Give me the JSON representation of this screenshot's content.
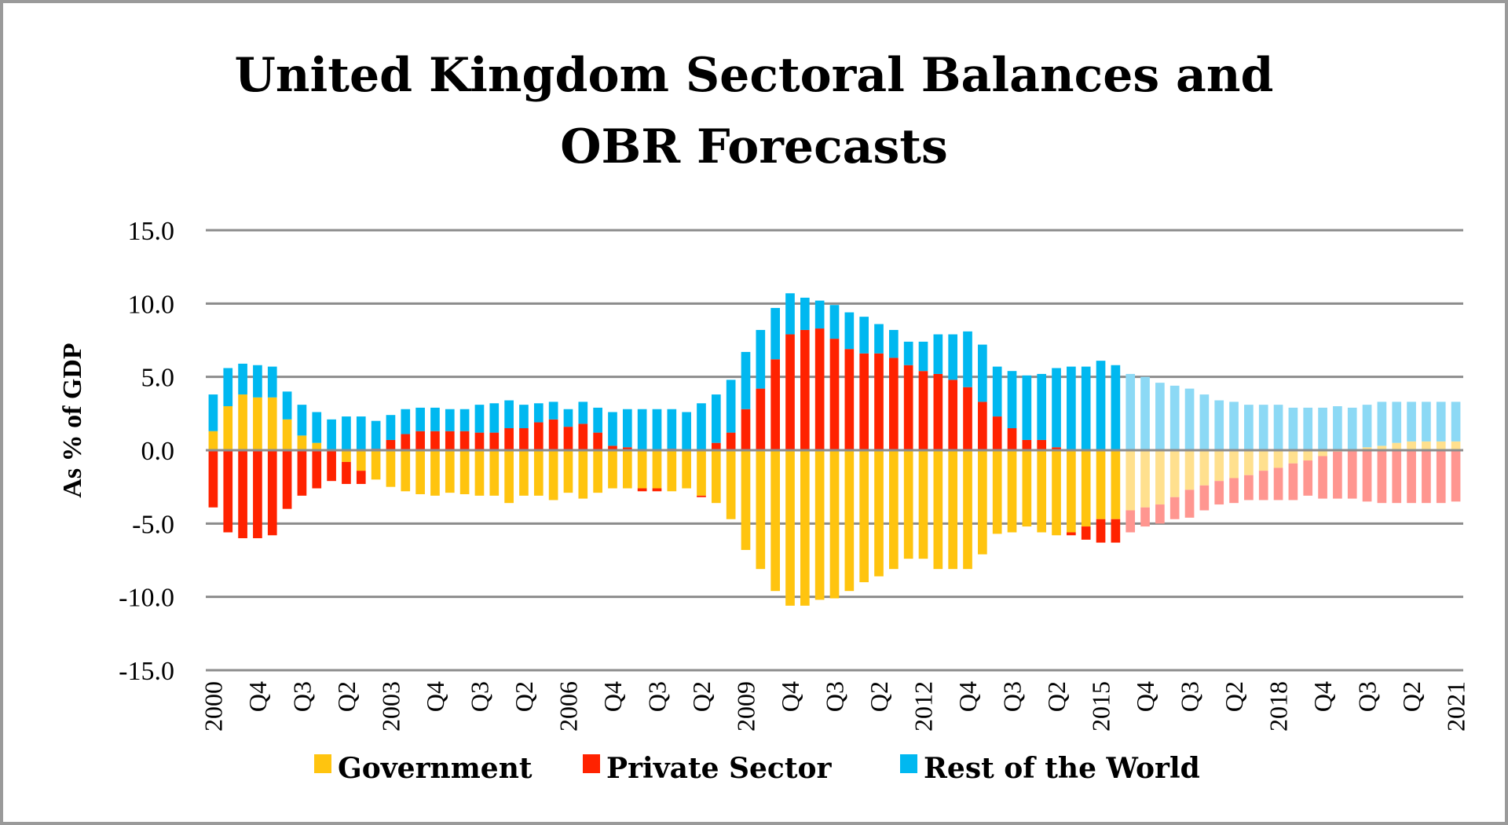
{
  "chart_data": {
    "type": "bar",
    "stacked": true,
    "title_lines": [
      "United Kingdom Sectoral Balances and",
      "OBR Forecasts"
    ],
    "title": "United Kingdom Sectoral Balances and OBR Forecasts",
    "xlabel": "",
    "ylabel": "As % of GDP",
    "ylim": [
      -15,
      15
    ],
    "yticks": [
      15,
      10,
      5,
      0,
      -5,
      -10,
      -15
    ],
    "ytick_labels": [
      "15.0",
      "10.0",
      "5.0",
      "0.0",
      "-5.0",
      "-10.0",
      "-15.0"
    ],
    "grid": true,
    "legend_position": "bottom",
    "x_start": "2000 Q1",
    "x_end": "2021 Q1",
    "frequency": "quarterly",
    "forecast_start_index": 62,
    "xtick_every": 3,
    "xtick_labels": [
      "2000",
      "Q4",
      "Q3",
      "Q2",
      "2003",
      "Q4",
      "Q3",
      "Q2",
      "2006",
      "Q4",
      "Q3",
      "Q2",
      "2009",
      "Q4",
      "Q3",
      "Q2",
      "2012",
      "Q4",
      "Q3",
      "Q2",
      "2015",
      "Q4",
      "Q3",
      "Q2",
      "2018",
      "Q4",
      "Q3",
      "Q2",
      "2021"
    ],
    "series": [
      {
        "name": "Government",
        "color": "#FFC40F",
        "forecast_color": "#FFE08E",
        "values": [
          1.3,
          3.0,
          3.8,
          3.6,
          3.6,
          2.1,
          1.0,
          0.5,
          0.0,
          -0.8,
          -1.4,
          -2.0,
          -2.5,
          -2.8,
          -3.0,
          -3.1,
          -2.9,
          -3.0,
          -3.1,
          -3.1,
          -3.6,
          -3.1,
          -3.1,
          -3.4,
          -2.9,
          -3.3,
          -2.9,
          -2.6,
          -2.6,
          -2.6,
          -2.6,
          -2.8,
          -2.6,
          -3.1,
          -3.6,
          -4.7,
          -6.8,
          -8.1,
          -9.6,
          -10.6,
          -10.6,
          -10.2,
          -10.1,
          -9.6,
          -9.0,
          -8.6,
          -8.1,
          -7.4,
          -7.4,
          -8.1,
          -8.1,
          -8.1,
          -7.1,
          -5.7,
          -5.6,
          -5.2,
          -5.6,
          -5.8,
          -5.6,
          -5.2,
          -4.7,
          -4.7,
          -4.1,
          -3.9,
          -3.7,
          -3.2,
          -2.7,
          -2.4,
          -2.1,
          -1.9,
          -1.7,
          -1.4,
          -1.2,
          -0.9,
          -0.7,
          -0.4,
          -0.1,
          0.0,
          0.2,
          0.3,
          0.5,
          0.6,
          0.6,
          0.6,
          0.6
        ]
      },
      {
        "name": "Private Sector",
        "color": "#FF2200",
        "forecast_color": "#FF9690",
        "values": [
          -3.9,
          -5.6,
          -6.0,
          -6.0,
          -5.8,
          -4.0,
          -3.1,
          -2.6,
          -2.1,
          -1.5,
          -0.9,
          0.1,
          0.7,
          1.1,
          1.3,
          1.3,
          1.3,
          1.3,
          1.2,
          1.2,
          1.5,
          1.5,
          1.9,
          2.1,
          1.6,
          1.8,
          1.2,
          0.3,
          0.2,
          -0.2,
          -0.2,
          0.1,
          0.0,
          -0.1,
          0.5,
          1.2,
          2.8,
          4.2,
          6.2,
          7.9,
          8.2,
          8.3,
          7.6,
          6.9,
          6.6,
          6.6,
          6.3,
          5.8,
          5.4,
          5.2,
          4.8,
          4.3,
          3.3,
          2.3,
          1.5,
          0.7,
          0.7,
          0.2,
          -0.2,
          -0.9,
          -1.6,
          -1.6,
          -1.5,
          -1.3,
          -1.3,
          -1.5,
          -1.9,
          -1.7,
          -1.6,
          -1.7,
          -1.7,
          -2.0,
          -2.2,
          -2.5,
          -2.4,
          -2.9,
          -3.2,
          -3.3,
          -3.5,
          -3.6,
          -3.6,
          -3.6,
          -3.6,
          -3.6,
          -3.5
        ]
      },
      {
        "name": "Rest of the World",
        "color": "#00B8F0",
        "forecast_color": "#8CD9F5",
        "values": [
          2.5,
          2.6,
          2.1,
          2.2,
          2.1,
          1.9,
          2.1,
          2.1,
          2.1,
          2.3,
          2.3,
          1.9,
          1.7,
          1.7,
          1.6,
          1.6,
          1.5,
          1.5,
          1.9,
          2.0,
          1.9,
          1.6,
          1.3,
          1.2,
          1.2,
          1.5,
          1.7,
          2.3,
          2.6,
          2.8,
          2.8,
          2.7,
          2.6,
          3.2,
          3.3,
          3.6,
          3.9,
          4.0,
          3.5,
          2.8,
          2.2,
          1.9,
          2.3,
          2.5,
          2.5,
          2.0,
          1.9,
          1.6,
          2.0,
          2.7,
          3.1,
          3.8,
          3.9,
          3.4,
          3.9,
          4.4,
          4.5,
          5.4,
          5.7,
          5.7,
          6.1,
          5.8,
          5.2,
          5.0,
          4.6,
          4.4,
          4.2,
          3.8,
          3.4,
          3.3,
          3.1,
          3.1,
          3.1,
          2.9,
          2.9,
          2.9,
          3.0,
          2.9,
          2.9,
          3.0,
          2.8,
          2.7,
          2.7,
          2.7,
          2.7
        ]
      }
    ]
  }
}
